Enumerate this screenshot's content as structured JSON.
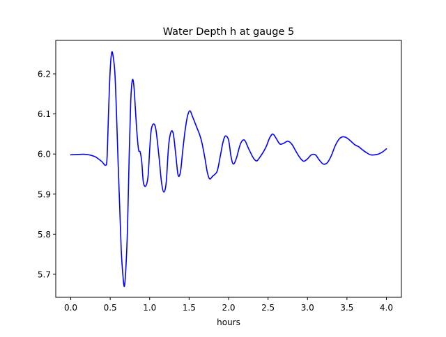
{
  "chart_data": {
    "type": "line",
    "title": "Water Depth h at gauge 5",
    "xlabel": "hours",
    "ylabel": "",
    "xlim": [
      -0.19,
      4.19
    ],
    "ylim": [
      5.6425,
      6.2835
    ],
    "grid": false,
    "legend": "none",
    "colors": {
      "line": "#0000ff",
      "axes": "#000000",
      "background": "#ffffff"
    },
    "x_ticks": [
      {
        "value": 0.0,
        "label": "0.0"
      },
      {
        "value": 0.5,
        "label": "0.5"
      },
      {
        "value": 1.0,
        "label": "1.0"
      },
      {
        "value": 1.5,
        "label": "1.5"
      },
      {
        "value": 2.0,
        "label": "2.0"
      },
      {
        "value": 2.5,
        "label": "2.5"
      },
      {
        "value": 3.0,
        "label": "3.0"
      },
      {
        "value": 3.5,
        "label": "3.5"
      },
      {
        "value": 4.0,
        "label": "4.0"
      }
    ],
    "y_ticks": [
      {
        "value": 5.7,
        "label": "5.7"
      },
      {
        "value": 5.8,
        "label": "5.8"
      },
      {
        "value": 5.9,
        "label": "5.9"
      },
      {
        "value": 6.0,
        "label": "6.0"
      },
      {
        "value": 6.1,
        "label": "6.1"
      },
      {
        "value": 6.2,
        "label": "6.2"
      }
    ],
    "series": [
      {
        "x": [
          0.0,
          0.1,
          0.2,
          0.3,
          0.35,
          0.4,
          0.44,
          0.46,
          0.48,
          0.5,
          0.52,
          0.54,
          0.56,
          0.58,
          0.6,
          0.62,
          0.64,
          0.66,
          0.68,
          0.7,
          0.72,
          0.74,
          0.76,
          0.78,
          0.8,
          0.82,
          0.84,
          0.86,
          0.88,
          0.9,
          0.92,
          0.95,
          0.98,
          1.0,
          1.02,
          1.05,
          1.08,
          1.12,
          1.15,
          1.18,
          1.21,
          1.24,
          1.27,
          1.3,
          1.33,
          1.36,
          1.39,
          1.42,
          1.45,
          1.48,
          1.51,
          1.54,
          1.57,
          1.6,
          1.63,
          1.66,
          1.7,
          1.73,
          1.76,
          1.8,
          1.83,
          1.86,
          1.9,
          1.93,
          1.96,
          2.0,
          2.03,
          2.06,
          2.1,
          2.15,
          2.2,
          2.25,
          2.3,
          2.33,
          2.36,
          2.4,
          2.44,
          2.48,
          2.52,
          2.56,
          2.6,
          2.65,
          2.7,
          2.75,
          2.8,
          2.85,
          2.9,
          2.95,
          3.0,
          3.05,
          3.1,
          3.15,
          3.2,
          3.25,
          3.3,
          3.35,
          3.4,
          3.45,
          3.5,
          3.55,
          3.6,
          3.65,
          3.7,
          3.75,
          3.8,
          3.85,
          3.9,
          3.95,
          4.0
        ],
        "y": [
          5.998,
          5.999,
          5.999,
          5.994,
          5.988,
          5.98,
          5.972,
          5.99,
          6.11,
          6.21,
          6.254,
          6.24,
          6.2,
          6.1,
          5.98,
          5.87,
          5.76,
          5.7,
          5.67,
          5.72,
          5.82,
          5.99,
          6.13,
          6.184,
          6.17,
          6.11,
          6.05,
          6.01,
          6.005,
          5.98,
          5.93,
          5.92,
          5.945,
          6.01,
          6.06,
          6.075,
          6.06,
          5.99,
          5.93,
          5.905,
          5.93,
          6.02,
          6.055,
          6.05,
          6.0,
          5.948,
          5.955,
          6.01,
          6.06,
          6.095,
          6.108,
          6.095,
          6.08,
          6.065,
          6.05,
          6.03,
          5.99,
          5.955,
          5.938,
          5.945,
          5.95,
          5.96,
          6.0,
          6.03,
          6.045,
          6.035,
          5.995,
          5.975,
          5.99,
          6.025,
          6.035,
          6.015,
          5.995,
          5.986,
          5.983,
          5.993,
          6.005,
          6.02,
          6.04,
          6.05,
          6.04,
          6.025,
          6.027,
          6.032,
          6.025,
          6.008,
          5.992,
          5.982,
          5.988,
          5.998,
          5.998,
          5.985,
          5.975,
          5.978,
          5.995,
          6.02,
          6.037,
          6.043,
          6.04,
          6.032,
          6.023,
          6.018,
          6.01,
          6.003,
          5.998,
          5.998,
          6.0,
          6.005,
          6.013
        ]
      }
    ]
  }
}
